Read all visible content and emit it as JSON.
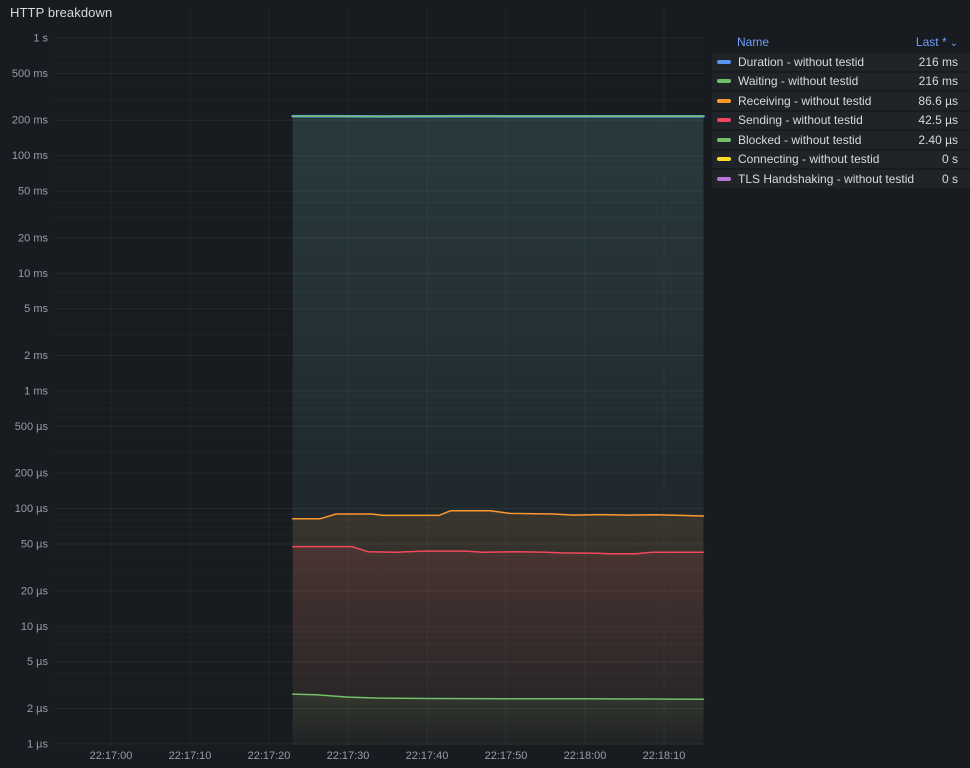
{
  "panel": {
    "title": "HTTP breakdown"
  },
  "legend": {
    "columns": {
      "name": "Name",
      "last": "Last *",
      "sort_icon": "⌄"
    },
    "rows": [
      {
        "label": "Duration - without testid",
        "value": "216 ms",
        "color": "#5794F2"
      },
      {
        "label": "Waiting - without testid",
        "value": "216 ms",
        "color": "#73BF69"
      },
      {
        "label": "Receiving - without testid",
        "value": "86.6 µs",
        "color": "#FF9830"
      },
      {
        "label": "Sending - without testid",
        "value": "42.5 µs",
        "color": "#F2495C"
      },
      {
        "label": "Blocked - without testid",
        "value": "2.40 µs",
        "color": "#73BF69"
      },
      {
        "label": "Connecting - without testid",
        "value": "0 s",
        "color": "#FADE2A"
      },
      {
        "label": "TLS Handshaking - without testid",
        "value": "0 s",
        "color": "#B877D9"
      }
    ]
  },
  "chart_data": {
    "type": "line",
    "title": "HTTP breakdown",
    "y_scale": "log10",
    "y_unit": "duration",
    "ylim_microseconds": [
      1,
      1000000
    ],
    "grid": true,
    "legend_position": "right-table",
    "x_ticks": [
      {
        "t": 0,
        "label": "22:17:00"
      },
      {
        "t": 10,
        "label": "22:17:10"
      },
      {
        "t": 20,
        "label": "22:17:20"
      },
      {
        "t": 30,
        "label": "22:17:30"
      },
      {
        "t": 40,
        "label": "22:17:40"
      },
      {
        "t": 50,
        "label": "22:17:50"
      },
      {
        "t": 60,
        "label": "22:18:00"
      },
      {
        "t": 70,
        "label": "22:18:10"
      }
    ],
    "y_ticks": [
      {
        "us": 1000000,
        "label": "1 s"
      },
      {
        "us": 500000,
        "label": "500 ms"
      },
      {
        "us": 200000,
        "label": "200 ms"
      },
      {
        "us": 100000,
        "label": "100 ms"
      },
      {
        "us": 50000,
        "label": "50 ms"
      },
      {
        "us": 20000,
        "label": "20 ms"
      },
      {
        "us": 10000,
        "label": "10 ms"
      },
      {
        "us": 5000,
        "label": "5 ms"
      },
      {
        "us": 2000,
        "label": "2 ms"
      },
      {
        "us": 1000,
        "label": "1 ms"
      },
      {
        "us": 500,
        "label": "500 µs"
      },
      {
        "us": 200,
        "label": "200 µs"
      },
      {
        "us": 100,
        "label": "100 µs"
      },
      {
        "us": 50,
        "label": "50 µs"
      },
      {
        "us": 20,
        "label": "20 µs"
      },
      {
        "us": 10,
        "label": "10 µs"
      },
      {
        "us": 5,
        "label": "5 µs"
      },
      {
        "us": 2,
        "label": "2 µs"
      },
      {
        "us": 1,
        "label": "1 µs"
      }
    ],
    "series": [
      {
        "name": "Duration - without testid",
        "color": "#5794F2",
        "last": "216 ms",
        "points_t_us": [
          [
            23,
            216500
          ],
          [
            28,
            216500
          ],
          [
            34,
            215600
          ],
          [
            40,
            216000
          ],
          [
            46,
            216300
          ],
          [
            52,
            215900
          ],
          [
            58,
            216100
          ],
          [
            64,
            215900
          ],
          [
            70,
            216200
          ],
          [
            75,
            216000
          ]
        ]
      },
      {
        "name": "Waiting - without testid",
        "color": "#73BF69",
        "last": "216 ms",
        "points_t_us": [
          [
            23,
            216500
          ],
          [
            28,
            216500
          ],
          [
            34,
            215600
          ],
          [
            40,
            216000
          ],
          [
            46,
            216300
          ],
          [
            52,
            215900
          ],
          [
            58,
            216100
          ],
          [
            64,
            215900
          ],
          [
            70,
            216200
          ],
          [
            75,
            216000
          ]
        ]
      },
      {
        "name": "Receiving - without testid",
        "color": "#FF9830",
        "last": "86.6 µs",
        "points_t_us": [
          [
            23,
            82
          ],
          [
            26.5,
            82
          ],
          [
            28.5,
            90
          ],
          [
            33,
            90
          ],
          [
            34.5,
            87.5
          ],
          [
            41.5,
            87.5
          ],
          [
            43,
            96
          ],
          [
            48,
            96
          ],
          [
            50.5,
            91
          ],
          [
            56,
            90
          ],
          [
            58.5,
            88
          ],
          [
            62,
            89
          ],
          [
            65.5,
            88
          ],
          [
            69,
            88.5
          ],
          [
            72,
            87.5
          ],
          [
            75,
            86.6
          ]
        ]
      },
      {
        "name": "Sending - without testid",
        "color": "#F2495C",
        "last": "42.5 µs",
        "points_t_us": [
          [
            23,
            47.5
          ],
          [
            30.5,
            47.5
          ],
          [
            32.5,
            43
          ],
          [
            36,
            42.5
          ],
          [
            39.5,
            43.5
          ],
          [
            45,
            43.5
          ],
          [
            47,
            42.5
          ],
          [
            51.5,
            43
          ],
          [
            55,
            42.5
          ],
          [
            57,
            42
          ],
          [
            61.5,
            41.8
          ],
          [
            63,
            41.3
          ],
          [
            66.5,
            41.3
          ],
          [
            68.5,
            42.5
          ],
          [
            75,
            42.5
          ]
        ]
      },
      {
        "name": "Blocked - without testid",
        "color": "#73BF69",
        "last": "2.40 µs",
        "points_t_us": [
          [
            23,
            2.65
          ],
          [
            26,
            2.62
          ],
          [
            30,
            2.5
          ],
          [
            34,
            2.45
          ],
          [
            40,
            2.43
          ],
          [
            50,
            2.42
          ],
          [
            60,
            2.42
          ],
          [
            68,
            2.41
          ],
          [
            75,
            2.4
          ]
        ]
      },
      {
        "name": "Connecting - without testid",
        "color": "#FADE2A",
        "last": "0 s",
        "points_t_us": []
      },
      {
        "name": "TLS Handshaking - without testid",
        "color": "#B877D9",
        "last": "0 s",
        "points_t_us": []
      }
    ]
  }
}
